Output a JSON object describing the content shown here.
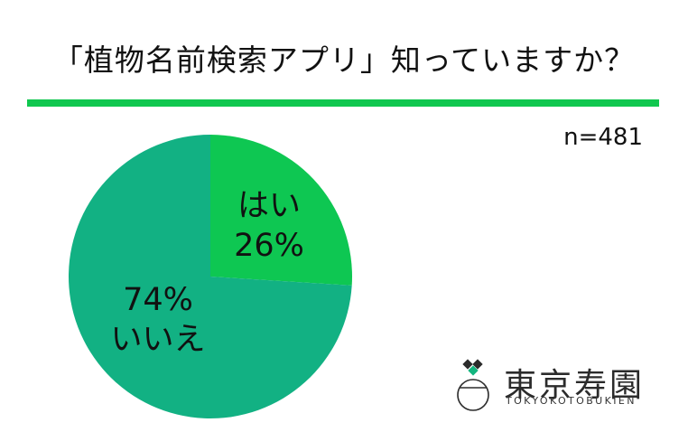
{
  "title": "「植物名前検索アプリ」知っていますか？",
  "sample_size": "n=481",
  "colors": {
    "title_bar": "#10c74f",
    "yes": "#0ec752",
    "no": "#12b183"
  },
  "chart_data": {
    "type": "pie",
    "slices": [
      {
        "label": "はい",
        "value": 26,
        "value_label": "26%"
      },
      {
        "label": "いいえ",
        "value": 74,
        "value_label": "74%"
      }
    ]
  },
  "logo": {
    "kanji": "東京寿園",
    "roman": "TOKYOKOTOBUKIEN"
  }
}
